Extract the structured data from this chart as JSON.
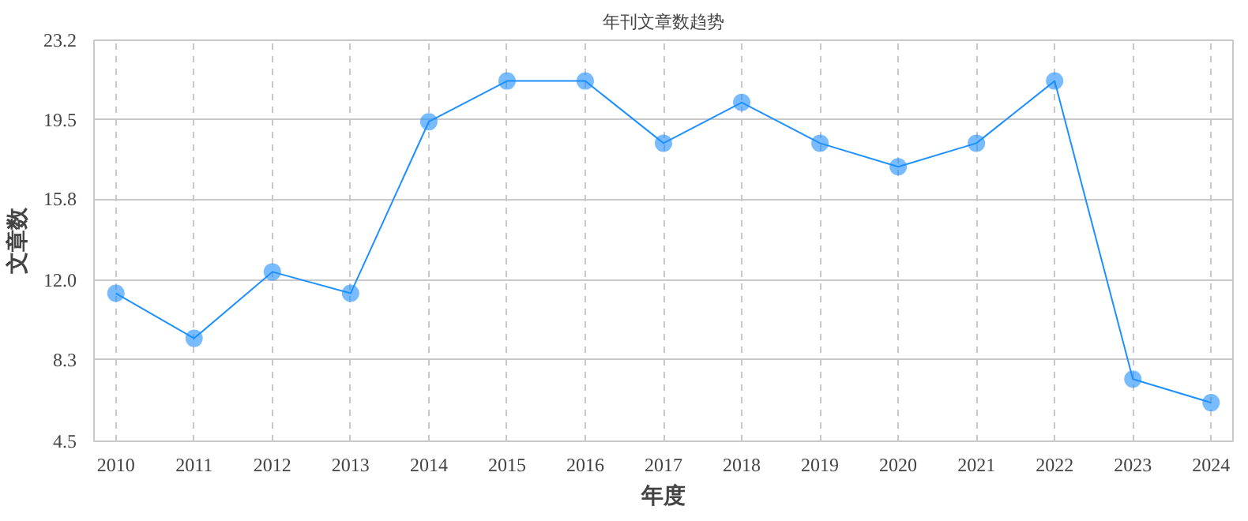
{
  "chart_data": {
    "type": "line",
    "title": "年刊文章数趋势",
    "xlabel": "年度",
    "ylabel": "文章数",
    "categories": [
      "2010",
      "2011",
      "2012",
      "2013",
      "2014",
      "2015",
      "2016",
      "2017",
      "2018",
      "2019",
      "2020",
      "2021",
      "2022",
      "2023",
      "2024"
    ],
    "series": [
      {
        "color": "#1e90ff",
        "values": [
          11.4,
          9.3,
          12.4,
          11.4,
          19.4,
          21.3,
          21.3,
          18.4,
          20.3,
          18.4,
          17.3,
          18.4,
          21.3,
          7.4,
          6.3
        ]
      }
    ],
    "ylim": [
      4.5,
      23.2
    ],
    "yticks": [
      {
        "value": 4.5,
        "label": "4.5"
      },
      {
        "value": 8.3,
        "label": "8.3"
      },
      {
        "value": 12.0,
        "label": "12.0"
      },
      {
        "value": 15.8,
        "label": "15.8"
      },
      {
        "value": 19.5,
        "label": "19.5"
      },
      {
        "value": 23.2,
        "label": "23.2"
      }
    ],
    "grid": true,
    "marker": "circle",
    "line_style": "solid"
  }
}
